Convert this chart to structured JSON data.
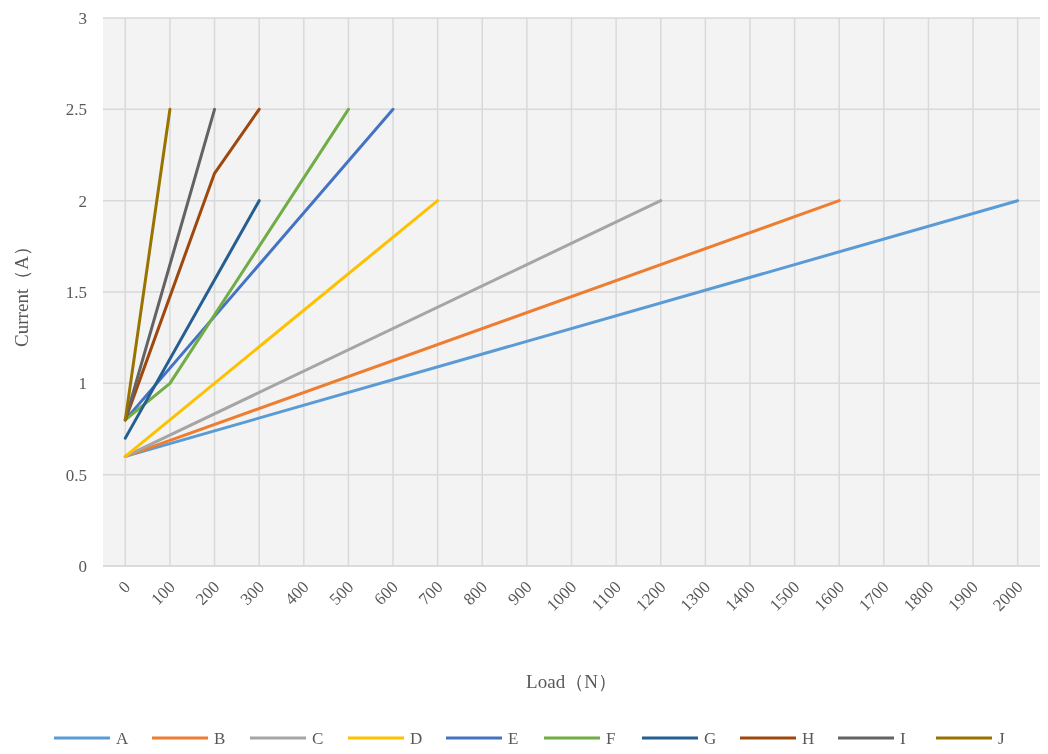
{
  "chart_data": {
    "type": "line",
    "xlabel": "Load（N）",
    "ylabel": "Current（A）",
    "xlim": [
      -50,
      2050
    ],
    "xticks": [
      0,
      100,
      200,
      300,
      400,
      500,
      600,
      700,
      800,
      900,
      1000,
      1100,
      1200,
      1300,
      1400,
      1500,
      1600,
      1700,
      1800,
      1900,
      2000
    ],
    "ylim": [
      0,
      3
    ],
    "yticks": [
      0,
      0.5,
      1,
      1.5,
      2,
      2.5,
      3
    ],
    "grid": true,
    "legend": "bottom",
    "marker": "none",
    "line_style": "solid",
    "series": [
      {
        "name": "A",
        "color": "#5b9bd5",
        "x": [
          0,
          2000
        ],
        "values": [
          0.6,
          2.0
        ]
      },
      {
        "name": "B",
        "color": "#ed7d31",
        "x": [
          0,
          1600
        ],
        "values": [
          0.6,
          2.0
        ]
      },
      {
        "name": "C",
        "color": "#a5a5a5",
        "x": [
          0,
          1200
        ],
        "values": [
          0.6,
          2.0
        ]
      },
      {
        "name": "D",
        "color": "#ffc000",
        "x": [
          0,
          700
        ],
        "values": [
          0.6,
          2.0
        ]
      },
      {
        "name": "E",
        "color": "#4472c4",
        "x": [
          0,
          600
        ],
        "values": [
          0.8,
          2.5
        ]
      },
      {
        "name": "F",
        "color": "#70ad47",
        "x": [
          0,
          100,
          500
        ],
        "values": [
          0.8,
          1.0,
          2.5
        ]
      },
      {
        "name": "G",
        "color": "#255e91",
        "x": [
          0,
          300
        ],
        "values": [
          0.7,
          2.0
        ]
      },
      {
        "name": "H",
        "color": "#9e480e",
        "x": [
          0,
          200,
          300
        ],
        "values": [
          0.8,
          2.15,
          2.5
        ]
      },
      {
        "name": "I",
        "color": "#636363",
        "x": [
          0,
          200
        ],
        "values": [
          0.8,
          2.5
        ]
      },
      {
        "name": "J",
        "color": "#997300",
        "x": [
          0,
          100
        ],
        "values": [
          0.8,
          2.5
        ]
      }
    ]
  }
}
